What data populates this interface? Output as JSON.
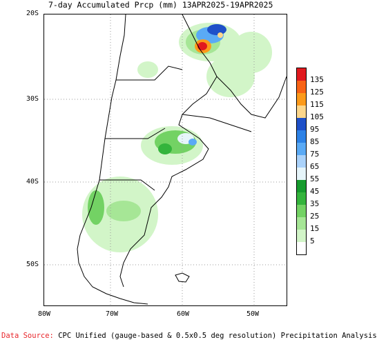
{
  "title": "7-day Accumulated Prcp (mm) 13APR2025-19APR2025",
  "lat_labels": [
    "20S",
    "30S",
    "40S",
    "50S"
  ],
  "lon_labels": [
    "80W",
    "70W",
    "60W",
    "50W"
  ],
  "legend": {
    "labels": [
      "135",
      "125",
      "115",
      "105",
      "95",
      "85",
      "75",
      "65",
      "55",
      "45",
      "35",
      "25",
      "15",
      "5"
    ],
    "colors": [
      "#e1191e",
      "#f86315",
      "#fc9a1a",
      "#fdd78b",
      "#1e50c8",
      "#2d82e6",
      "#5aaaf5",
      "#aad2fa",
      "#e6f5fa",
      "#169b2d",
      "#34b43c",
      "#73d264",
      "#a6e696",
      "#d2f5c8",
      "#ffffff"
    ]
  },
  "footer": {
    "source_label": "Data Source:",
    "source_text": "CPC Unified (gauge-based & 0.5x0.5 deg resolution) Precipitation Analysis"
  }
}
